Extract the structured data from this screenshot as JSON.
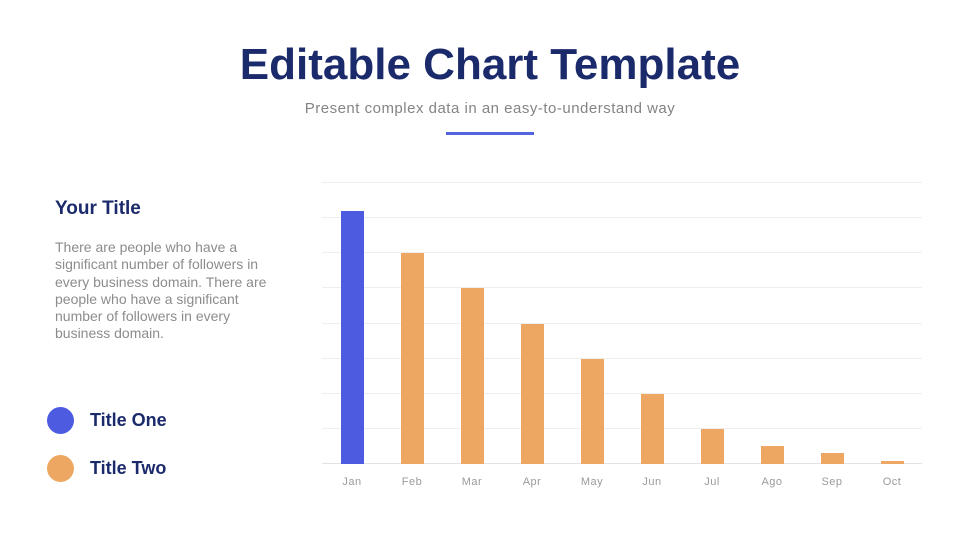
{
  "slide": {
    "title": "Editable Chart Template",
    "subtitle": "Present complex data in an easy-to-understand way"
  },
  "sidebar": {
    "heading": "Your Title",
    "body": "There are people who have a significant number of followers in every business domain. There are people who have a significant number of followers in every business domain.",
    "legend": [
      {
        "label": "Title One",
        "color": "#4d5be1"
      },
      {
        "label": "Title Two",
        "color": "#eda763"
      }
    ]
  },
  "colors": {
    "navy_text": "#1b2a6b",
    "accent_blue": "#4d5be1",
    "accent_orange": "#eda763",
    "underline_blue": "#5365de",
    "gridline": "#eeeeee"
  },
  "chart_data": {
    "type": "bar",
    "title": "",
    "xlabel": "",
    "ylabel": "",
    "categories": [
      "Jan",
      "Feb",
      "Mar",
      "Apr",
      "May",
      "Jun",
      "Jul",
      "Ago",
      "Sep",
      "Oct"
    ],
    "values": [
      72,
      60,
      50,
      40,
      30,
      20,
      10,
      5,
      3,
      1
    ],
    "series_membership": [
      "Title One",
      "Title Two",
      "Title Two",
      "Title Two",
      "Title Two",
      "Title Two",
      "Title Two",
      "Title Two",
      "Title Two",
      "Title Two"
    ],
    "highlight_index": 0,
    "bar_colors": {
      "highlight": "#4d5be1",
      "default": "#eda763"
    },
    "ylim": [
      0,
      80
    ],
    "gridline_step": 10,
    "grid": true,
    "y_tick_labels_visible": false,
    "legend_position": "left-bottom"
  }
}
